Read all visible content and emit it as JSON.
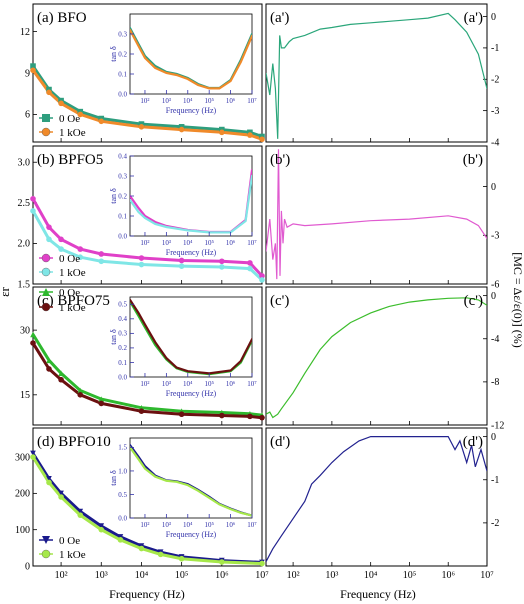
{
  "figure": {
    "ylabel_left": "εr",
    "ylabel_right": "[MC = Δε/ε(0)] (%)",
    "xlabel_left": "Frequency (Hz)",
    "xlabel_right": "Frequency (Hz)",
    "inset_xlabel": "Frequency (Hz)",
    "inset_ylabel": "tan δ",
    "x_ticks": [
      "10²",
      "10³",
      "10⁴",
      "10⁵",
      "10⁶",
      "10⁷"
    ]
  },
  "colors": {
    "teal": "#2e9e7e",
    "orange": "#f08a2a",
    "magenta": "#e040c8",
    "cyan": "#7fe6e6",
    "green": "#2eb82e",
    "darkred": "#6b1010",
    "navy": "#1a1a8c",
    "lime": "#a6e84a",
    "mc_a": "#2aa67a",
    "mc_b": "#e05ad0",
    "mc_c": "#3cbd2c",
    "mc_d": "#22228f",
    "inset_axis": "#3333aa"
  },
  "chart_data": [
    {
      "type": "line",
      "panel": "a",
      "title": "(a) BFO",
      "x_log": true,
      "xlim": [
        20,
        10000000
      ],
      "ylim": [
        4,
        14
      ],
      "yticks": [
        "6",
        "9",
        "12"
      ],
      "legend": [
        "0 Oe",
        "1 kOe"
      ],
      "series": [
        {
          "name": "0 Oe",
          "x": [
            20,
            50,
            100,
            300,
            1000,
            10000,
            100000,
            1000000,
            5000000,
            10000000
          ],
          "values": [
            9.5,
            7.8,
            7.0,
            6.2,
            5.7,
            5.3,
            5.1,
            4.9,
            4.7,
            4.4
          ]
        },
        {
          "name": "1 kOe",
          "x": [
            20,
            50,
            100,
            300,
            1000,
            10000,
            100000,
            1000000,
            5000000,
            10000000
          ],
          "values": [
            9.2,
            7.6,
            6.8,
            6.0,
            5.5,
            5.1,
            4.9,
            4.7,
            4.5,
            4.2
          ]
        }
      ],
      "inset": {
        "ylim": [
          0,
          0.4
        ],
        "yticks": [
          "0.0",
          "0.1",
          "0.2",
          "0.3"
        ],
        "series": [
          {
            "name": "0 Oe",
            "x": [
              20,
              50,
              100,
              300,
              1000,
              3000,
              10000,
              30000,
              100000,
              300000,
              1000000,
              3000000,
              10000000
            ],
            "values": [
              0.33,
              0.25,
              0.19,
              0.14,
              0.11,
              0.1,
              0.08,
              0.05,
              0.03,
              0.03,
              0.07,
              0.17,
              0.3
            ]
          },
          {
            "name": "1 kOe",
            "x": [
              20,
              50,
              100,
              300,
              1000,
              3000,
              10000,
              30000,
              100000,
              300000,
              1000000,
              3000000,
              10000000
            ],
            "values": [
              0.32,
              0.24,
              0.18,
              0.13,
              0.105,
              0.095,
              0.075,
              0.045,
              0.028,
              0.028,
              0.065,
              0.16,
              0.29
            ]
          }
        ]
      }
    },
    {
      "type": "line",
      "panel": "b",
      "title": "(b) BPFO5",
      "x_log": true,
      "xlim": [
        20,
        10000000
      ],
      "ylim": [
        1.5,
        3.2
      ],
      "yticks": [
        "1.5",
        "2.0",
        "2.5",
        "3.0"
      ],
      "legend": [
        "0 Oe",
        "1 kOe"
      ],
      "series": [
        {
          "name": "0 Oe",
          "x": [
            20,
            50,
            100,
            300,
            1000,
            10000,
            100000,
            1000000,
            5000000,
            10000000
          ],
          "values": [
            2.55,
            2.2,
            2.05,
            1.93,
            1.87,
            1.82,
            1.79,
            1.78,
            1.76,
            1.6
          ]
        },
        {
          "name": "1 kOe",
          "x": [
            20,
            50,
            100,
            300,
            1000,
            10000,
            100000,
            1000000,
            5000000,
            10000000
          ],
          "values": [
            2.4,
            2.05,
            1.93,
            1.83,
            1.78,
            1.74,
            1.72,
            1.71,
            1.69,
            1.55
          ]
        }
      ],
      "inset": {
        "ylim": [
          0,
          0.4
        ],
        "yticks": [
          "0.0",
          "0.1",
          "0.2",
          "0.3",
          "0.4"
        ],
        "series": [
          {
            "name": "0 Oe",
            "x": [
              20,
              50,
              100,
              300,
              1000,
              10000,
              100000,
              1000000,
              5000000,
              10000000
            ],
            "values": [
              0.2,
              0.14,
              0.1,
              0.07,
              0.05,
              0.03,
              0.02,
              0.02,
              0.08,
              0.33
            ]
          },
          {
            "name": "1 kOe",
            "x": [
              20,
              50,
              100,
              300,
              1000,
              10000,
              100000,
              1000000,
              5000000,
              10000000
            ],
            "values": [
              0.18,
              0.12,
              0.09,
              0.06,
              0.045,
              0.028,
              0.018,
              0.018,
              0.075,
              0.3
            ]
          }
        ]
      }
    },
    {
      "type": "line",
      "panel": "c",
      "title": "(c) BPFO75",
      "x_log": true,
      "xlim": [
        20,
        10000000
      ],
      "ylim": [
        8,
        40
      ],
      "yticks": [
        "15",
        "30"
      ],
      "legend": [
        "0 Oe",
        "1 kOe"
      ],
      "series": [
        {
          "name": "0 Oe",
          "x": [
            20,
            50,
            100,
            300,
            1000,
            10000,
            100000,
            1000000,
            5000000,
            10000000
          ],
          "values": [
            29,
            23,
            20,
            16,
            14,
            12,
            11.2,
            10.9,
            10.6,
            10.3
          ]
        },
        {
          "name": "1 kOe",
          "x": [
            20,
            50,
            100,
            300,
            1000,
            10000,
            100000,
            1000000,
            5000000,
            10000000
          ],
          "values": [
            27,
            21,
            18.5,
            15,
            13,
            11.2,
            10.5,
            10.2,
            10.0,
            9.7
          ]
        }
      ],
      "inset": {
        "ylim": [
          0,
          0.55
        ],
        "yticks": [
          "0.0",
          "0.1",
          "0.2",
          "0.3",
          "0.4",
          "0.5"
        ],
        "series": [
          {
            "name": "0 Oe",
            "x": [
              20,
              50,
              100,
              300,
              1000,
              3000,
              10000,
              100000,
              1000000,
              3000000,
              10000000
            ],
            "values": [
              0.52,
              0.42,
              0.34,
              0.22,
              0.12,
              0.06,
              0.035,
              0.02,
              0.04,
              0.1,
              0.25
            ]
          },
          {
            "name": "1 kOe",
            "x": [
              20,
              50,
              100,
              300,
              1000,
              3000,
              10000,
              100000,
              1000000,
              3000000,
              10000000
            ],
            "values": [
              0.53,
              0.44,
              0.36,
              0.24,
              0.13,
              0.065,
              0.04,
              0.025,
              0.045,
              0.11,
              0.26
            ]
          }
        ]
      }
    },
    {
      "type": "line",
      "panel": "d",
      "title": "(d) BPFO10",
      "x_log": true,
      "xlim": [
        20,
        10000000
      ],
      "ylim": [
        0,
        380
      ],
      "yticks": [
        "0",
        "100",
        "200",
        "300"
      ],
      "legend": [
        "0 Oe",
        "1 kOe"
      ],
      "series": [
        {
          "name": "0 Oe",
          "x": [
            20,
            50,
            100,
            300,
            1000,
            3000,
            10000,
            30000,
            100000,
            1000000,
            10000000
          ],
          "values": [
            310,
            240,
            200,
            150,
            110,
            80,
            55,
            38,
            25,
            15,
            10
          ]
        },
        {
          "name": "1 kOe",
          "x": [
            20,
            50,
            100,
            300,
            1000,
            3000,
            10000,
            30000,
            100000,
            1000000,
            10000000
          ],
          "values": [
            300,
            230,
            190,
            140,
            100,
            72,
            48,
            32,
            20,
            11,
            7
          ]
        }
      ],
      "inset": {
        "ylim": [
          0,
          1.7
        ],
        "yticks": [
          "0.0",
          "0.5",
          "1.0",
          "1.5"
        ],
        "series": [
          {
            "name": "0 Oe",
            "x": [
              20,
              50,
              100,
              300,
              1000,
              3000,
              10000,
              30000,
              100000,
              300000,
              1000000,
              3000000,
              10000000
            ],
            "values": [
              1.55,
              1.3,
              1.1,
              0.9,
              0.8,
              0.78,
              0.72,
              0.6,
              0.45,
              0.3,
              0.2,
              0.12,
              0.05
            ]
          },
          {
            "name": "1 kOe",
            "x": [
              20,
              50,
              100,
              300,
              1000,
              3000,
              10000,
              30000,
              100000,
              300000,
              1000000,
              3000000,
              10000000
            ],
            "values": [
              1.5,
              1.25,
              1.05,
              0.88,
              0.79,
              0.77,
              0.7,
              0.58,
              0.43,
              0.29,
              0.19,
              0.11,
              0.05
            ]
          }
        ]
      }
    },
    {
      "type": "line",
      "panel": "a'",
      "title": "(a')",
      "x_log": true,
      "xlim": [
        20,
        10000000
      ],
      "ylim": [
        -4,
        0.4
      ],
      "yticks": [
        "0",
        "-1",
        "-2",
        "-3",
        "-4"
      ],
      "series": [
        {
          "x": [
            20,
            25,
            30,
            35,
            40,
            45,
            50,
            60,
            80,
            100,
            200,
            500,
            1000,
            3000,
            10000,
            30000,
            100000,
            300000,
            1000000,
            1500000,
            3000000,
            6000000,
            10000000
          ],
          "values": [
            -1.8,
            -2.5,
            -1.5,
            -2.3,
            -3.9,
            -0.6,
            -1.0,
            -1.0,
            -0.8,
            -0.7,
            -0.6,
            -0.4,
            -0.35,
            -0.25,
            -0.2,
            -0.15,
            -0.1,
            -0.05,
            0.1,
            -0.1,
            -0.5,
            -1.2,
            -2.3
          ]
        }
      ]
    },
    {
      "type": "line",
      "panel": "b'",
      "title": "(b')",
      "x_log": true,
      "xlim": [
        20,
        10000000
      ],
      "ylim": [
        -6,
        2.5
      ],
      "yticks": [
        "0",
        "-3",
        "-6"
      ],
      "series": [
        {
          "x": [
            20,
            25,
            30,
            35,
            38,
            42,
            46,
            50,
            55,
            60,
            70,
            100,
            200,
            1000,
            10000,
            100000,
            1000000,
            3000000,
            6000000,
            10000000
          ],
          "values": [
            -4,
            -2,
            -4.5,
            -3.5,
            -5.7,
            2.3,
            -5.5,
            -1.5,
            -3.5,
            -2.0,
            -2.5,
            -2.3,
            -2.4,
            -2.3,
            -2.1,
            -2.0,
            -1.8,
            -2.0,
            -2.4,
            -3.2
          ]
        }
      ]
    },
    {
      "type": "line",
      "panel": "c'",
      "title": "(c')",
      "x_log": true,
      "xlim": [
        20,
        10000000
      ],
      "ylim": [
        -12,
        0.8
      ],
      "yticks": [
        "0",
        "-4",
        "-8",
        "-12"
      ],
      "series": [
        {
          "x": [
            20,
            25,
            30,
            40,
            50,
            100,
            200,
            500,
            1000,
            3000,
            10000,
            30000,
            100000,
            300000,
            1000000,
            3000000,
            6000000,
            10000000
          ],
          "values": [
            -11,
            -10.8,
            -11.3,
            -11.0,
            -10.5,
            -9.0,
            -7.2,
            -5.0,
            -3.8,
            -2.5,
            -1.6,
            -1.0,
            -0.6,
            -0.4,
            -0.25,
            -0.2,
            -0.4,
            -0.9
          ]
        }
      ]
    },
    {
      "type": "line",
      "panel": "d'",
      "title": "(d')",
      "x_log": true,
      "xlim": [
        20,
        10000000
      ],
      "ylim": [
        -3,
        0.2
      ],
      "yticks": [
        "0",
        "-1",
        "-2"
      ],
      "series": [
        {
          "x": [
            20,
            30,
            50,
            100,
            200,
            300,
            500,
            1000,
            2000,
            5000,
            10000,
            100000,
            1000000,
            1500000,
            2000000,
            3000000,
            4000000,
            5000000,
            7000000,
            10000000
          ],
          "values": [
            -2.9,
            -2.6,
            -2.3,
            -1.9,
            -1.5,
            -1.1,
            -0.9,
            -0.6,
            -0.35,
            -0.1,
            0.0,
            0.0,
            0.0,
            -0.3,
            -0.1,
            -0.6,
            -0.2,
            -0.7,
            -0.3,
            -0.8
          ]
        }
      ]
    }
  ]
}
